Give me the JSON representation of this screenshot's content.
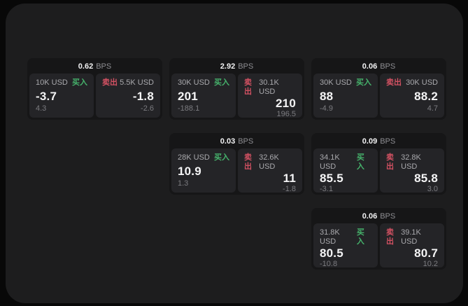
{
  "labels": {
    "bps_suffix": "BPS",
    "buy": "买入",
    "sell": "卖出"
  },
  "colors": {
    "buy_green": "#46b36c",
    "sell_red": "#d25162",
    "window_bg": "#1d1d1e",
    "card_bg": "#161617",
    "panel_bg": "#242427"
  },
  "cards": [
    {
      "col": 1,
      "row": 1,
      "bps": "0.62",
      "buy": {
        "notional": "10K USD",
        "price": "-3.7",
        "change": "4.3"
      },
      "sell": {
        "notional": "5.5K USD",
        "price": "-1.8",
        "change": "-2.6"
      }
    },
    {
      "col": 2,
      "row": 1,
      "bps": "2.92",
      "buy": {
        "notional": "30K USD",
        "price": "201",
        "change": "-188.1"
      },
      "sell": {
        "notional": "30.1K USD",
        "price": "210",
        "change": "196.5"
      }
    },
    {
      "col": 3,
      "row": 1,
      "bps": "0.06",
      "buy": {
        "notional": "30K USD",
        "price": "88",
        "change": "-4.9"
      },
      "sell": {
        "notional": "30K USD",
        "price": "88.2",
        "change": "4.7"
      }
    },
    {
      "col": 2,
      "row": 2,
      "bps": "0.03",
      "buy": {
        "notional": "28K USD",
        "price": "10.9",
        "change": "1.3"
      },
      "sell": {
        "notional": "32.6K USD",
        "price": "11",
        "change": "-1.8"
      }
    },
    {
      "col": 3,
      "row": 2,
      "bps": "0.09",
      "buy": {
        "notional": "34.1K USD",
        "price": "85.5",
        "change": "-3.1"
      },
      "sell": {
        "notional": "32.8K USD",
        "price": "85.8",
        "change": "3.0"
      }
    },
    {
      "col": 3,
      "row": 3,
      "bps": "0.06",
      "buy": {
        "notional": "31.8K USD",
        "price": "80.5",
        "change": "-10.8"
      },
      "sell": {
        "notional": "39.1K USD",
        "price": "80.7",
        "change": "10.2"
      }
    }
  ]
}
